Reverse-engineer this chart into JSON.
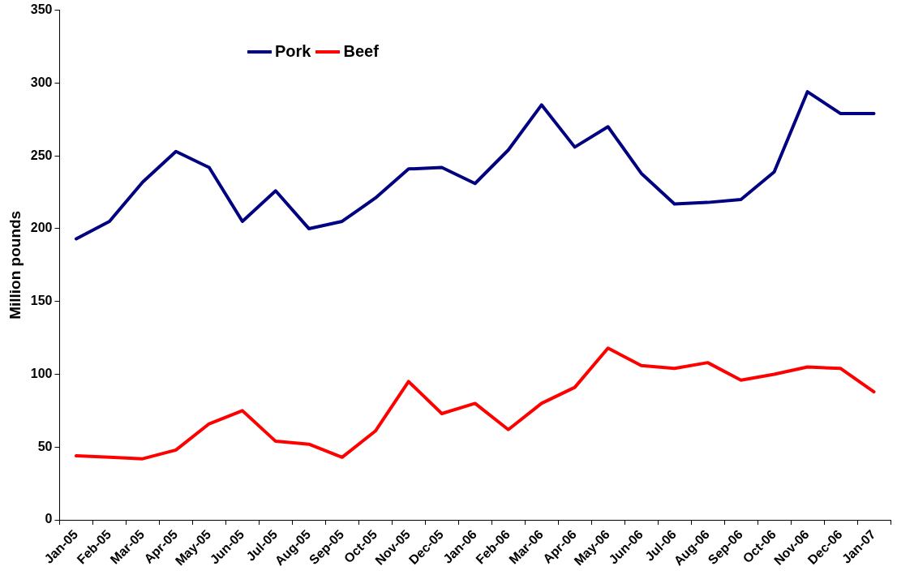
{
  "chart_data": {
    "type": "line",
    "ylabel": "Million pounds",
    "categories": [
      "Jan-05",
      "Feb-05",
      "Mar-05",
      "Apr-05",
      "May-05",
      "Jun-05",
      "Jul-05",
      "Aug-05",
      "Sep-05",
      "Oct-05",
      "Nov-05",
      "Dec-05",
      "Jan-06",
      "Feb-06",
      "Mar-06",
      "Apr-06",
      "May-06",
      "Jun-06",
      "Jul-06",
      "Aug-06",
      "Sep-06",
      "Oct-06",
      "Nov-06",
      "Dec-06",
      "Jan-07"
    ],
    "series": [
      {
        "name": "Pork",
        "color": "#000080",
        "values": [
          193,
          205,
          232,
          253,
          242,
          205,
          226,
          200,
          205,
          221,
          241,
          242,
          231,
          254,
          285,
          256,
          270,
          238,
          217,
          218,
          220,
          239,
          294,
          279,
          279
        ]
      },
      {
        "name": "Beef",
        "color": "#ff0000",
        "values": [
          44,
          43,
          42,
          48,
          66,
          75,
          54,
          52,
          43,
          61,
          95,
          73,
          80,
          62,
          80,
          91,
          118,
          106,
          104,
          108,
          96,
          100,
          105,
          104,
          88
        ]
      }
    ],
    "ylim": [
      0,
      350
    ],
    "yticks": [
      0,
      50,
      100,
      150,
      200,
      250,
      300,
      350
    ],
    "grid": false,
    "legend": "top left",
    "marker": "none",
    "line_style": "solid"
  }
}
